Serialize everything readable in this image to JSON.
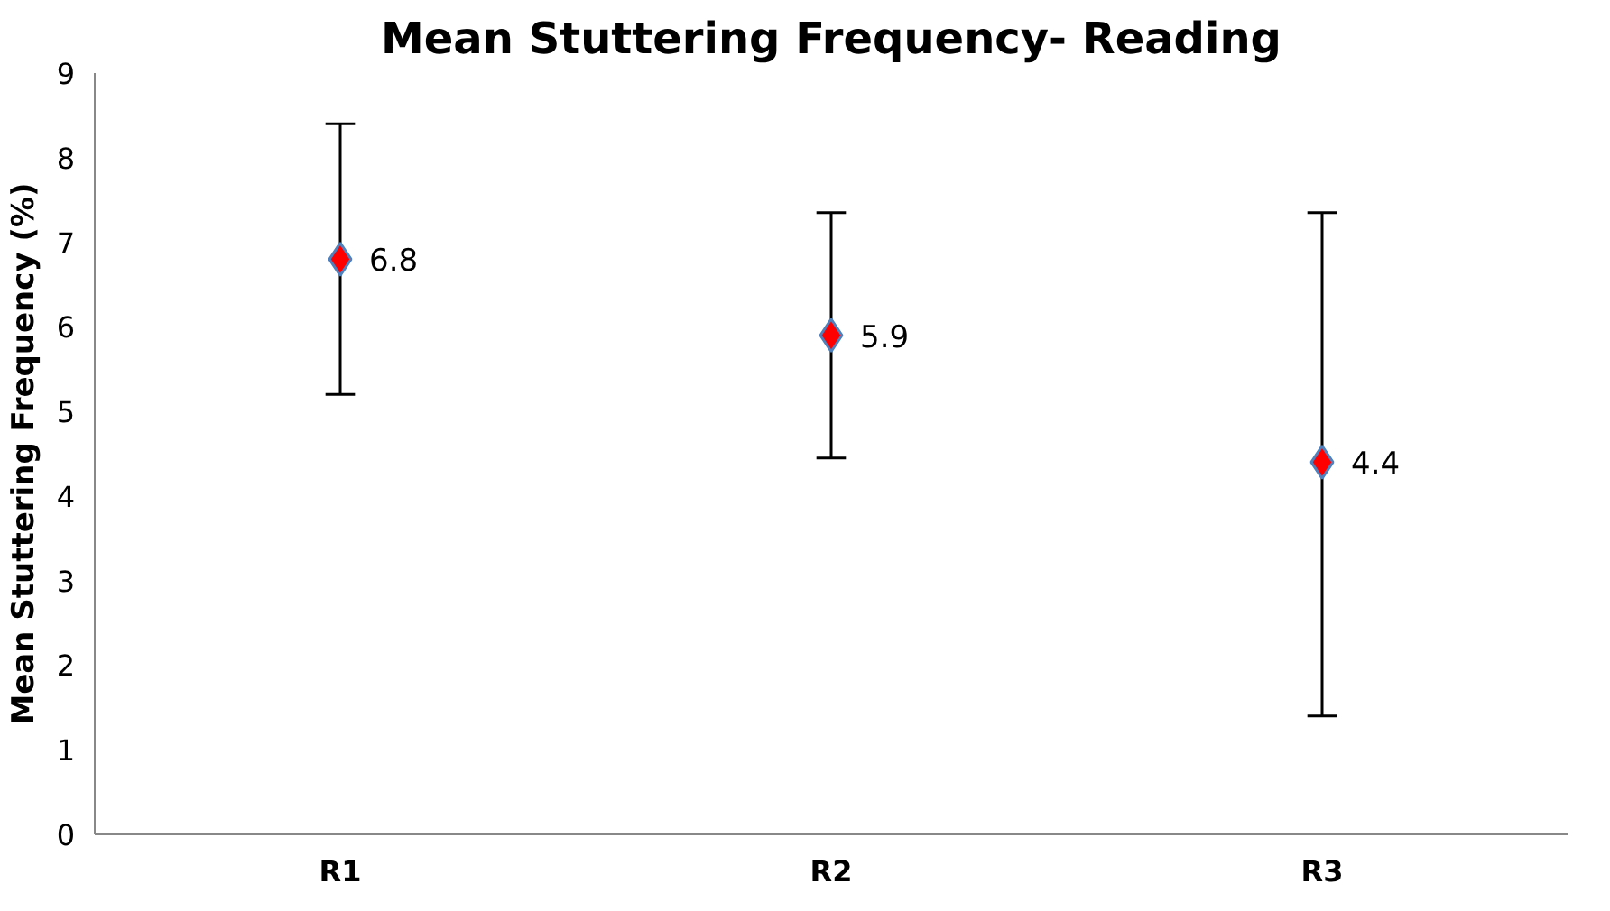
{
  "chart_data": {
    "type": "scatter",
    "title": "Mean Stuttering Frequency- Reading",
    "ylabel": "Mean Stuttering Frequency (%)",
    "categories": [
      "R1",
      "R2",
      "R3"
    ],
    "series": [
      {
        "color": "#ff0000",
        "values": [
          6.8,
          5.9,
          4.4
        ],
        "errors": [
          [
            5.2,
            8.4
          ],
          [
            4.45,
            7.35
          ],
          [
            1.4,
            7.35
          ]
        ]
      }
    ],
    "ylim": [
      0,
      9
    ],
    "yticks": [
      0,
      1,
      2,
      3,
      4,
      5,
      6,
      7,
      8,
      9
    ],
    "marker": "diamond",
    "data_labels": true,
    "grid": false
  }
}
